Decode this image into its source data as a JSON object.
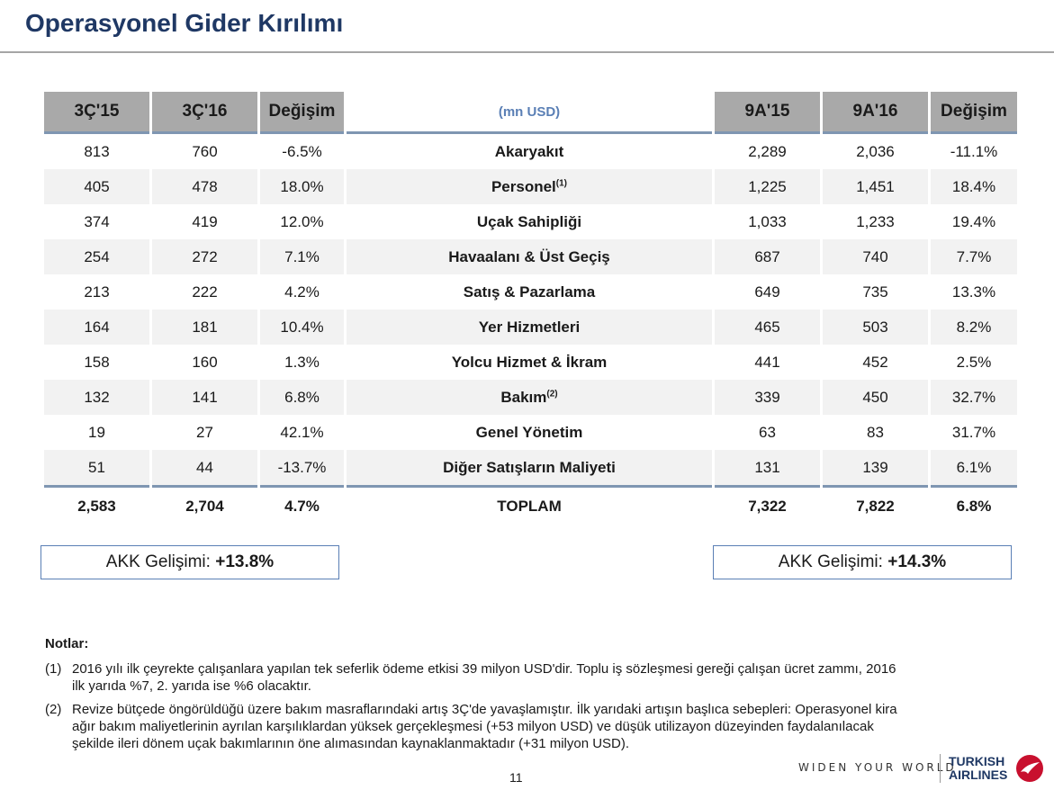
{
  "page": {
    "title": "Operasyonel Gider Kırılımı",
    "page_number": "11"
  },
  "table": {
    "headers": {
      "q15": "3Ç'15",
      "q16": "3Ç'16",
      "qchg": "Değişim",
      "unit": "(mn USD)",
      "m15": "9A'15",
      "m16": "9A'16",
      "mchg": "Değişim"
    },
    "rows": [
      {
        "q15": "813",
        "q16": "760",
        "qchg": "-6.5%",
        "label": "Akaryakıt",
        "sup": "",
        "m15": "2,289",
        "m16": "2,036",
        "mchg": "-11.1%"
      },
      {
        "q15": "405",
        "q16": "478",
        "qchg": "18.0%",
        "label": "Personel",
        "sup": "(1)",
        "m15": "1,225",
        "m16": "1,451",
        "mchg": "18.4%"
      },
      {
        "q15": "374",
        "q16": "419",
        "qchg": "12.0%",
        "label": "Uçak Sahipliği",
        "sup": "",
        "m15": "1,033",
        "m16": "1,233",
        "mchg": "19.4%"
      },
      {
        "q15": "254",
        "q16": "272",
        "qchg": "7.1%",
        "label": "Havaalanı & Üst Geçiş",
        "sup": "",
        "m15": "687",
        "m16": "740",
        "mchg": "7.7%"
      },
      {
        "q15": "213",
        "q16": "222",
        "qchg": "4.2%",
        "label": "Satış & Pazarlama",
        "sup": "",
        "m15": "649",
        "m16": "735",
        "mchg": "13.3%"
      },
      {
        "q15": "164",
        "q16": "181",
        "qchg": "10.4%",
        "label": "Yer Hizmetleri",
        "sup": "",
        "m15": "465",
        "m16": "503",
        "mchg": "8.2%"
      },
      {
        "q15": "158",
        "q16": "160",
        "qchg": "1.3%",
        "label": "Yolcu Hizmet & İkram",
        "sup": "",
        "m15": "441",
        "m16": "452",
        "mchg": "2.5%"
      },
      {
        "q15": "132",
        "q16": "141",
        "qchg": "6.8%",
        "label": "Bakım",
        "sup": "(2)",
        "m15": "339",
        "m16": "450",
        "mchg": "32.7%"
      },
      {
        "q15": "19",
        "q16": "27",
        "qchg": "42.1%",
        "label": "Genel Yönetim",
        "sup": "",
        "m15": "63",
        "m16": "83",
        "mchg": "31.7%"
      },
      {
        "q15": "51",
        "q16": "44",
        "qchg": "-13.7%",
        "label": "Diğer Satışların Maliyeti",
        "sup": "",
        "m15": "131",
        "m16": "139",
        "mchg": "6.1%"
      }
    ],
    "total": {
      "q15": "2,583",
      "q16": "2,704",
      "qchg": "4.7%",
      "label": "TOPLAM",
      "m15": "7,322",
      "m16": "7,822",
      "mchg": "6.8%"
    }
  },
  "akk": {
    "left": {
      "prefix": "AKK Gelişimi: ",
      "value": "+13.8%"
    },
    "right": {
      "prefix": "AKK Gelişimi: ",
      "value": "+14.3%"
    }
  },
  "notes": {
    "header": "Notlar:",
    "items": [
      {
        "num": "(1)",
        "text": "2016 yılı ilk çeyrekte çalışanlara yapılan tek seferlik ödeme etkisi 39 milyon USD'dir. Toplu iş sözleşmesi gereği çalışan ücret zammı, 2016 ilk yarıda %7, 2. yarıda ise %6 olacaktır."
      },
      {
        "num": "(2)",
        "text": "Revize bütçede öngörüldüğü üzere bakım masraflarındaki artış 3Ç'de yavaşlamıştır. İlk yarıdaki artışın başlıca sebepleri: Operasyonel kira ağır bakım maliyetlerinin ayrılan karşılıklardan yüksek gerçekleşmesi (+53 milyon USD) ve düşük utilizayon düzeyinden faydalanılacak şekilde ileri dönem uçak bakımlarının öne alımasından kaynaklanmaktadır (+31 milyon USD)."
      }
    ]
  },
  "footer": {
    "slogan": "WIDEN YOUR WORLD",
    "logo_line1": "TURKISH",
    "logo_line2": "AIRLINES",
    "logo_icon": "turkish-airlines-bird-icon",
    "brand_color": "#c8102e"
  }
}
